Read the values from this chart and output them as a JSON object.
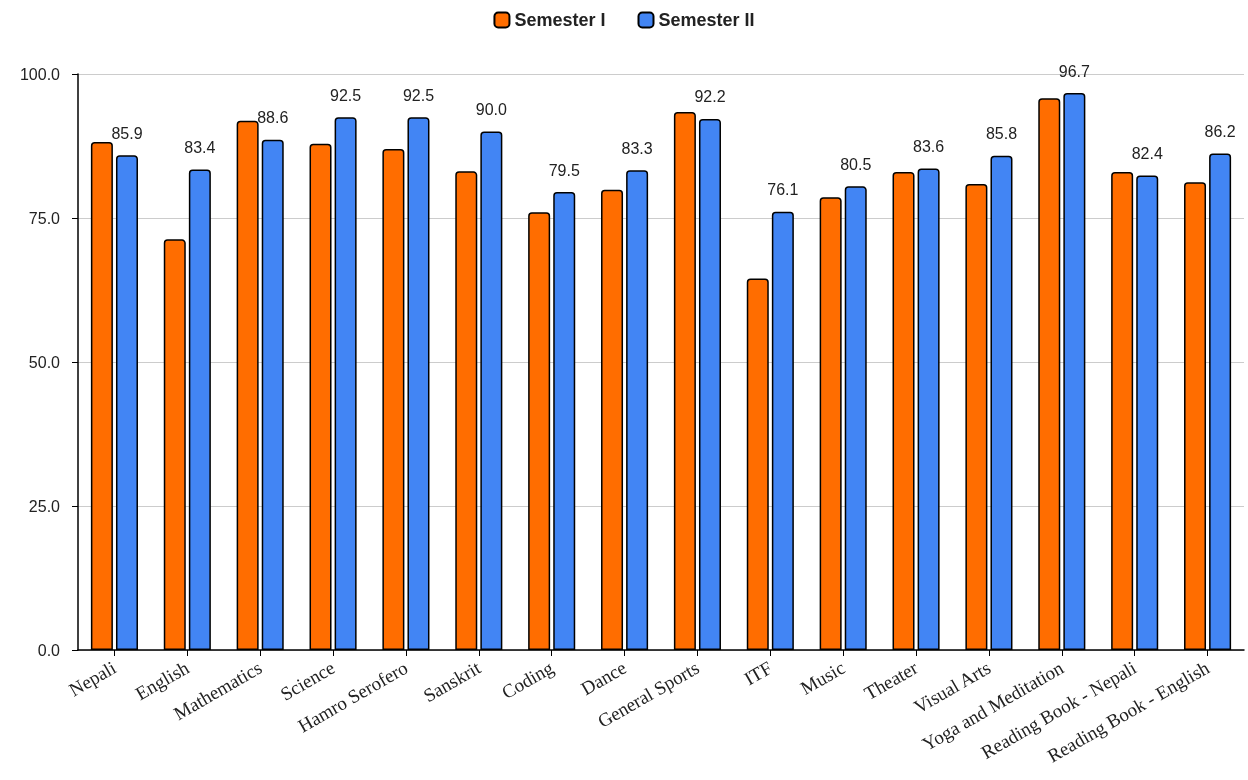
{
  "chart_data": {
    "type": "bar",
    "categories": [
      "Nepali",
      "English",
      "Mathematics",
      "Science",
      "Hamro Serofero",
      "Sanskrit",
      "Coding",
      "Dance",
      "General Sports",
      "ITF",
      "Music",
      "Theater",
      "Visual Arts",
      "Yoga and Meditation",
      "Reading Book - Nepali",
      "Reading Book - English"
    ],
    "series": [
      {
        "name": "Semester I",
        "color": "#ff6d00",
        "values": [
          88.2,
          71.3,
          91.9,
          87.9,
          87.0,
          83.1,
          76.0,
          79.9,
          93.4,
          64.5,
          78.6,
          83.0,
          80.9,
          95.8,
          83.0,
          81.2
        ]
      },
      {
        "name": "Semester II",
        "color": "#4285f4",
        "values": [
          85.9,
          83.4,
          88.6,
          92.5,
          92.5,
          90.0,
          79.5,
          83.3,
          92.2,
          76.1,
          80.5,
          83.6,
          85.8,
          96.7,
          82.4,
          86.2
        ],
        "value_labels": [
          "85.9",
          "83.4",
          "88.6",
          "92.5",
          "92.5",
          "90.0",
          "79.5",
          "83.3",
          "92.2",
          "76.1",
          "80.5",
          "83.6",
          "85.8",
          "96.7",
          "82.4",
          "86.2"
        ]
      }
    ],
    "ylim": [
      0,
      100
    ],
    "yticks": [
      {
        "value": 0,
        "label": "0.0"
      },
      {
        "value": 25,
        "label": "25.0"
      },
      {
        "value": 50,
        "label": "50.0"
      },
      {
        "value": 75,
        "label": "75.0"
      },
      {
        "value": 100,
        "label": "100.0"
      }
    ],
    "grid": "y",
    "legend": "top"
  }
}
